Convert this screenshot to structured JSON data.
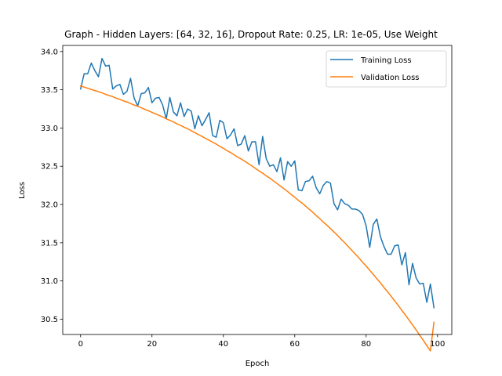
{
  "chart_data": {
    "type": "line",
    "title": "Graph - Hidden Layers: [64, 32, 16], Dropout Rate: 0.25, LR: 1e-05, Use Weight",
    "xlabel": "Epoch",
    "ylabel": "Loss",
    "xlim": [
      -5,
      104
    ],
    "ylim": [
      30.3,
      34.08
    ],
    "xticks": [
      0,
      20,
      40,
      60,
      80,
      100
    ],
    "yticks": [
      30.5,
      31.0,
      31.5,
      32.0,
      32.5,
      33.0,
      33.5,
      34.0
    ],
    "xtick_labels": [
      "0",
      "20",
      "40",
      "60",
      "80",
      "100"
    ],
    "ytick_labels": [
      "30.5",
      "31.0",
      "31.5",
      "32.0",
      "32.5",
      "33.0",
      "33.5",
      "34.0"
    ],
    "grid": false,
    "legend_position": "top-right",
    "series": [
      {
        "name": "Training Loss",
        "color": "#1f77b4",
        "values": [
          33.51,
          33.71,
          33.71,
          33.85,
          33.75,
          33.67,
          33.91,
          33.81,
          33.82,
          33.51,
          33.55,
          33.57,
          33.44,
          33.48,
          33.65,
          33.39,
          33.29,
          33.45,
          33.46,
          33.53,
          33.33,
          33.39,
          33.4,
          33.3,
          33.12,
          33.4,
          33.21,
          33.16,
          33.33,
          33.15,
          33.25,
          33.22,
          32.99,
          33.16,
          33.03,
          33.11,
          33.2,
          32.9,
          32.88,
          33.1,
          33.07,
          32.86,
          32.91,
          32.99,
          32.77,
          32.79,
          32.9,
          32.7,
          32.82,
          32.82,
          32.52,
          32.89,
          32.6,
          32.5,
          32.52,
          32.43,
          32.61,
          32.32,
          32.56,
          32.5,
          32.57,
          32.19,
          32.18,
          32.3,
          32.31,
          32.37,
          32.22,
          32.14,
          32.25,
          32.3,
          32.28,
          32.01,
          31.93,
          32.07,
          32.01,
          31.99,
          31.94,
          31.94,
          31.92,
          31.87,
          31.72,
          31.44,
          31.74,
          31.81,
          31.58,
          31.45,
          31.35,
          31.35,
          31.46,
          31.47,
          31.21,
          31.37,
          30.95,
          31.23,
          31.04,
          30.96,
          30.97,
          30.72,
          30.96,
          30.65
        ]
      },
      {
        "name": "Validation Loss",
        "color": "#ff7f0e",
        "values": [
          33.55,
          33.535,
          33.52,
          33.505,
          33.49,
          33.475,
          33.46,
          33.44,
          33.425,
          33.41,
          33.39,
          33.375,
          33.355,
          33.34,
          33.32,
          33.3,
          33.285,
          33.265,
          33.245,
          33.225,
          33.205,
          33.185,
          33.165,
          33.145,
          33.12,
          33.1,
          33.08,
          33.055,
          33.035,
          33.01,
          32.99,
          32.965,
          32.94,
          32.915,
          32.89,
          32.865,
          32.84,
          32.815,
          32.79,
          32.76,
          32.735,
          32.705,
          32.68,
          32.65,
          32.62,
          32.595,
          32.565,
          32.535,
          32.505,
          32.47,
          32.44,
          32.41,
          32.375,
          32.345,
          32.31,
          32.275,
          32.24,
          32.205,
          32.17,
          32.13,
          32.095,
          32.055,
          32.02,
          31.98,
          31.94,
          31.9,
          31.855,
          31.815,
          31.77,
          31.73,
          31.685,
          31.64,
          31.595,
          31.545,
          31.5,
          31.45,
          31.4,
          31.35,
          31.3,
          31.245,
          31.195,
          31.14,
          31.085,
          31.03,
          30.975,
          30.915,
          30.86,
          30.8,
          30.74,
          30.68,
          30.615,
          30.555,
          30.49,
          30.425,
          30.36,
          30.29,
          30.225,
          30.155,
          30.085,
          30.46
        ]
      }
    ]
  }
}
